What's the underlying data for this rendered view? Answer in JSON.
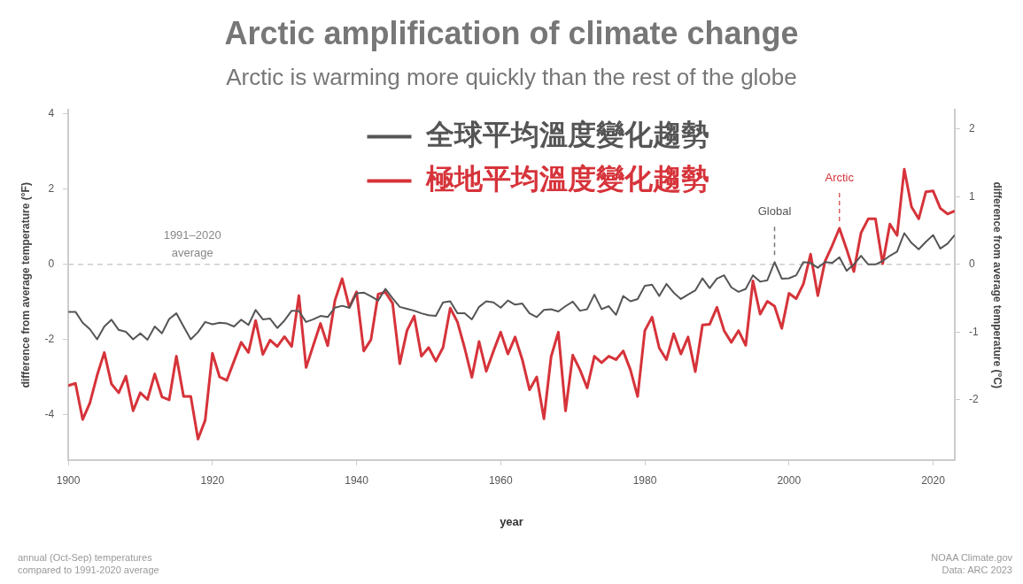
{
  "chart_data": {
    "type": "line",
    "title": "Arctic amplification of climate change",
    "subtitle": "Arctic is warming more quickly than the rest of the globe",
    "xlabel": "year",
    "ylabel": "difference from average temperature (°F)",
    "y2label": "difference from average temperature (°C)",
    "x": [
      1900,
      1901,
      1902,
      1903,
      1904,
      1905,
      1906,
      1907,
      1908,
      1909,
      1910,
      1911,
      1912,
      1913,
      1914,
      1915,
      1916,
      1917,
      1918,
      1919,
      1920,
      1921,
      1922,
      1923,
      1924,
      1925,
      1926,
      1927,
      1928,
      1929,
      1930,
      1931,
      1932,
      1933,
      1934,
      1935,
      1936,
      1937,
      1938,
      1939,
      1940,
      1941,
      1942,
      1943,
      1944,
      1945,
      1946,
      1947,
      1948,
      1949,
      1950,
      1951,
      1952,
      1953,
      1954,
      1955,
      1956,
      1957,
      1958,
      1959,
      1960,
      1961,
      1962,
      1963,
      1964,
      1965,
      1966,
      1967,
      1968,
      1969,
      1970,
      1971,
      1972,
      1973,
      1974,
      1975,
      1976,
      1977,
      1978,
      1979,
      1980,
      1981,
      1982,
      1983,
      1984,
      1985,
      1986,
      1987,
      1988,
      1989,
      1990,
      1991,
      1992,
      1993,
      1994,
      1995,
      1996,
      1997,
      1998,
      1999,
      2000,
      2001,
      2002,
      2003,
      2004,
      2005,
      2006,
      2007,
      2008,
      2009,
      2010,
      2011,
      2012,
      2013,
      2014,
      2015,
      2016,
      2017,
      2018,
      2019,
      2020,
      2021,
      2022,
      2023
    ],
    "series": [
      {
        "name": "全球平均溫度變化趨勢",
        "color": "#555555",
        "values": [
          -1.26,
          -1.26,
          -1.55,
          -1.72,
          -1.99,
          -1.65,
          -1.47,
          -1.74,
          -1.79,
          -1.99,
          -1.83,
          -2.0,
          -1.65,
          -1.83,
          -1.45,
          -1.3,
          -1.65,
          -1.99,
          -1.8,
          -1.53,
          -1.59,
          -1.55,
          -1.57,
          -1.65,
          -1.47,
          -1.61,
          -1.21,
          -1.46,
          -1.44,
          -1.69,
          -1.49,
          -1.23,
          -1.24,
          -1.53,
          -1.46,
          -1.37,
          -1.4,
          -1.15,
          -1.1,
          -1.15,
          -0.77,
          -0.75,
          -0.85,
          -0.96,
          -0.65,
          -0.9,
          -1.13,
          -1.18,
          -1.23,
          -1.3,
          -1.35,
          -1.37,
          -1.01,
          -0.98,
          -1.3,
          -1.3,
          -1.46,
          -1.13,
          -0.98,
          -1.01,
          -1.15,
          -0.96,
          -1.07,
          -1.04,
          -1.3,
          -1.4,
          -1.21,
          -1.19,
          -1.25,
          -1.11,
          -0.99,
          -1.23,
          -1.19,
          -0.8,
          -1.19,
          -1.11,
          -1.34,
          -0.84,
          -0.98,
          -0.92,
          -0.57,
          -0.54,
          -0.84,
          -0.52,
          -0.75,
          -0.92,
          -0.8,
          -0.69,
          -0.37,
          -0.63,
          -0.38,
          -0.29,
          -0.61,
          -0.73,
          -0.65,
          -0.29,
          -0.46,
          -0.42,
          0.06,
          -0.38,
          -0.37,
          -0.29,
          0.06,
          0.04,
          -0.09,
          0.06,
          0.04,
          0.19,
          -0.17,
          0.0,
          0.23,
          0.0,
          0.0,
          0.09,
          0.23,
          0.34,
          0.83,
          0.57,
          0.4,
          0.6,
          0.78,
          0.42,
          0.55,
          0.78
        ]
      },
      {
        "name": "極地平均溫度變化趨勢",
        "color": "#d6333a",
        "values": [
          -3.22,
          -3.16,
          -4.12,
          -3.68,
          -2.95,
          -2.34,
          -3.18,
          -3.41,
          -2.97,
          -3.89,
          -3.41,
          -3.59,
          -2.91,
          -3.52,
          -3.6,
          -2.44,
          -3.51,
          -3.51,
          -4.64,
          -4.14,
          -2.36,
          -2.99,
          -3.08,
          -2.57,
          -2.07,
          -2.34,
          -1.49,
          -2.39,
          -2.01,
          -2.18,
          -1.92,
          -2.18,
          -0.83,
          -2.74,
          -2.15,
          -1.57,
          -2.16,
          -0.96,
          -0.38,
          -1.14,
          -0.73,
          -2.3,
          -2.0,
          -0.79,
          -0.74,
          -1.03,
          -2.64,
          -1.76,
          -1.37,
          -2.44,
          -2.21,
          -2.57,
          -2.21,
          -1.16,
          -1.53,
          -2.22,
          -3.0,
          -2.05,
          -2.84,
          -2.3,
          -1.8,
          -2.38,
          -1.93,
          -2.53,
          -3.33,
          -2.99,
          -4.1,
          -2.45,
          -1.8,
          -3.89,
          -2.41,
          -2.8,
          -3.28,
          -2.44,
          -2.61,
          -2.44,
          -2.53,
          -2.3,
          -2.8,
          -3.51,
          -1.76,
          -1.4,
          -2.22,
          -2.53,
          -1.84,
          -2.38,
          -1.93,
          -2.85,
          -1.61,
          -1.59,
          -1.14,
          -1.76,
          -2.07,
          -1.76,
          -2.15,
          -0.44,
          -1.32,
          -0.98,
          -1.11,
          -1.7,
          -0.77,
          -0.91,
          -0.52,
          0.27,
          -0.83,
          0.08,
          0.5,
          0.96,
          0.4,
          -0.19,
          0.84,
          1.21,
          1.21,
          0.02,
          1.07,
          0.77,
          2.53,
          1.53,
          1.21,
          1.93,
          1.95,
          1.49,
          1.34,
          1.42
        ]
      }
    ],
    "xlim": [
      1900,
      2023
    ],
    "xticks": [
      1900,
      1920,
      1940,
      1960,
      1980,
      2000,
      2020
    ],
    "ylim": [
      -5.2,
      4.1
    ],
    "yticks": [
      -4,
      -2,
      0,
      2,
      4
    ],
    "y2lim": [
      -2.89,
      2.28
    ],
    "y2ticks": [
      -2,
      -1,
      0,
      1,
      2
    ],
    "ref_lines": [
      {
        "axis": "y",
        "value": 0,
        "label": "1991–2020 average",
        "color": "#cccccc",
        "line_style": "dashed"
      }
    ],
    "annotations": [
      {
        "text": "Global",
        "x": 1998,
        "y": 0.06
      },
      {
        "text": "Arctic",
        "x": 2007,
        "y": 0.96
      },
      "annual (Oct-Sep) temperatures",
      "compared to 1991-2020 average",
      "NOAA Climate.gov",
      "Data: ARC 2023"
    ],
    "legend": "top",
    "grid": false,
    "marker": "none",
    "line_style": "solid"
  }
}
